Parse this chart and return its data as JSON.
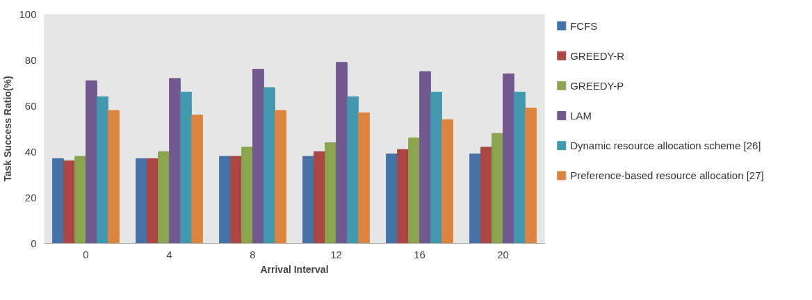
{
  "chart_data": {
    "type": "bar",
    "xlabel": "Arrival Interval",
    "ylabel": "Task Success Ratio(%)",
    "categories": [
      "0",
      "4",
      "8",
      "12",
      "16",
      "20"
    ],
    "series": [
      {
        "name": "FCFS",
        "color": "#4572a7",
        "values": [
          37,
          37,
          38,
          38,
          39,
          39
        ]
      },
      {
        "name": "GREEDY-R",
        "color": "#aa4643",
        "values": [
          36,
          37,
          38,
          40,
          41,
          42
        ]
      },
      {
        "name": "GREEDY-P",
        "color": "#89a54e",
        "values": [
          38,
          40,
          42,
          44,
          46,
          48
        ]
      },
      {
        "name": "LAM",
        "color": "#71588f",
        "values": [
          71,
          72,
          76,
          79,
          75,
          74
        ]
      },
      {
        "name": "Dynamic resource allocation scheme [26]",
        "color": "#4198af",
        "values": [
          64,
          66,
          68,
          64,
          66,
          66
        ]
      },
      {
        "name": "Preference-based resource allocation [27]",
        "color": "#db843d",
        "values": [
          58,
          56,
          58,
          57,
          54,
          59
        ]
      }
    ],
    "ylim": [
      0,
      100
    ],
    "yticks": [
      0,
      20,
      40,
      60,
      80,
      100
    ],
    "legend": "right"
  }
}
